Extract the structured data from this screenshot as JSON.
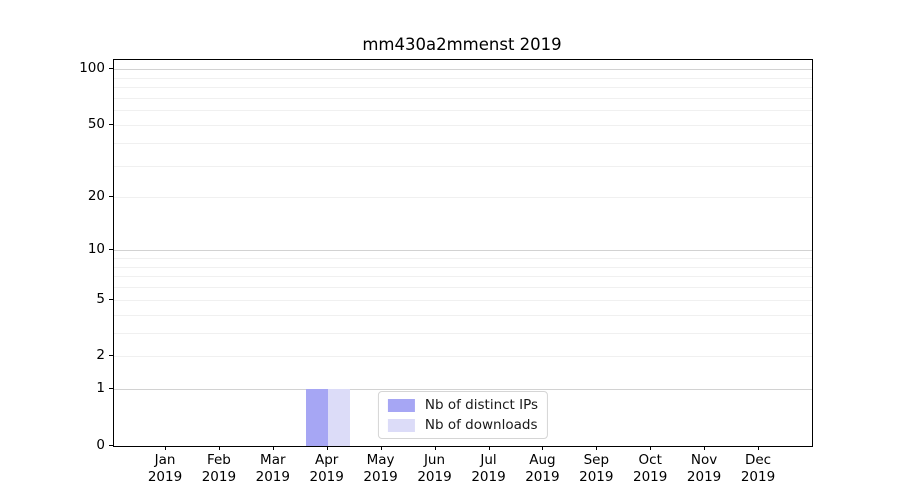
{
  "chart_data": {
    "type": "bar",
    "title": "mm430a2mmenst 2019",
    "categories": [
      {
        "month": "Jan",
        "year": "2019"
      },
      {
        "month": "Feb",
        "year": "2019"
      },
      {
        "month": "Mar",
        "year": "2019"
      },
      {
        "month": "Apr",
        "year": "2019"
      },
      {
        "month": "May",
        "year": "2019"
      },
      {
        "month": "Jun",
        "year": "2019"
      },
      {
        "month": "Jul",
        "year": "2019"
      },
      {
        "month": "Aug",
        "year": "2019"
      },
      {
        "month": "Sep",
        "year": "2019"
      },
      {
        "month": "Oct",
        "year": "2019"
      },
      {
        "month": "Nov",
        "year": "2019"
      },
      {
        "month": "Dec",
        "year": "2019"
      }
    ],
    "series": [
      {
        "name": "Nb of distinct IPs",
        "color": "#a6a6f4",
        "values": [
          0,
          0,
          0,
          1,
          0,
          0,
          0,
          0,
          0,
          0,
          0,
          0
        ]
      },
      {
        "name": "Nb of downloads",
        "color": "#dcdcf8",
        "values": [
          0,
          0,
          0,
          1,
          0,
          0,
          0,
          0,
          0,
          0,
          0,
          0
        ]
      }
    ],
    "yaxis": {
      "scale": "log1p",
      "ticks": [
        0,
        1,
        2,
        5,
        10,
        20,
        50,
        100
      ],
      "ylim": [
        0,
        112
      ],
      "major_grid": [
        1,
        10,
        100
      ],
      "minor_grid": [
        2,
        3,
        4,
        5,
        6,
        7,
        8,
        9,
        20,
        30,
        40,
        50,
        60,
        70,
        80,
        90
      ]
    },
    "xlabel": "",
    "ylabel": "",
    "legend": {
      "position": "lower center"
    },
    "colors": {
      "grid_major": "#d2d2d2",
      "grid_minor": "#f0f0f0",
      "spine": "#000000",
      "background": "#ffffff"
    }
  }
}
